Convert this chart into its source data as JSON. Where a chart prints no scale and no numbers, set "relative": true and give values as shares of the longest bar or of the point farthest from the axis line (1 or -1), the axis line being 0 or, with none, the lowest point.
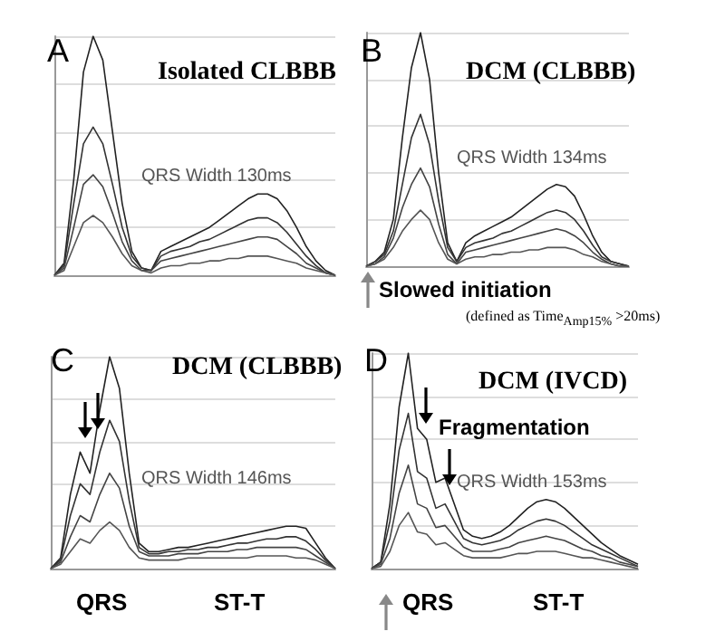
{
  "chart_data": [
    {
      "type": "line",
      "title": "Isolated CLBBB",
      "annotations": [
        "A",
        "QRS Width 130ms"
      ],
      "relative": true,
      "grid": "y",
      "line_style": "solid",
      "categories": [
        null,
        null,
        null,
        null,
        null,
        null,
        null,
        null,
        null,
        null,
        null,
        null,
        null,
        null,
        null,
        null,
        null,
        null,
        null,
        null,
        null,
        null,
        null,
        null,
        null,
        null,
        null,
        null,
        null,
        null
      ],
      "series": [
        {
          "color": "#222222",
          "values": [
            0,
            0.05,
            0.4,
            0.85,
            1,
            0.9,
            0.6,
            0.3,
            0.1,
            0.03,
            0.02,
            0.1,
            0.12,
            0.14,
            0.16,
            0.18,
            0.2,
            0.23,
            0.26,
            0.29,
            0.32,
            0.34,
            0.34,
            0.32,
            0.27,
            0.2,
            0.12,
            0.06,
            0.02,
            0
          ]
        },
        {
          "color": "#333333",
          "values": [
            0,
            0.04,
            0.3,
            0.55,
            0.62,
            0.55,
            0.38,
            0.2,
            0.08,
            0.03,
            0.02,
            0.08,
            0.1,
            0.11,
            0.12,
            0.14,
            0.15,
            0.17,
            0.19,
            0.21,
            0.23,
            0.24,
            0.24,
            0.22,
            0.18,
            0.13,
            0.08,
            0.04,
            0.01,
            0
          ]
        },
        {
          "color": "#444444",
          "values": [
            0,
            0.03,
            0.2,
            0.38,
            0.42,
            0.37,
            0.26,
            0.14,
            0.06,
            0.02,
            0.02,
            0.06,
            0.07,
            0.08,
            0.09,
            0.1,
            0.11,
            0.12,
            0.13,
            0.14,
            0.15,
            0.16,
            0.16,
            0.15,
            0.12,
            0.09,
            0.05,
            0.03,
            0.01,
            0
          ]
        },
        {
          "color": "#555555",
          "values": [
            0,
            0.02,
            0.12,
            0.22,
            0.25,
            0.22,
            0.16,
            0.09,
            0.04,
            0.02,
            0.01,
            0.03,
            0.04,
            0.04,
            0.05,
            0.05,
            0.06,
            0.06,
            0.07,
            0.07,
            0.08,
            0.08,
            0.08,
            0.07,
            0.06,
            0.05,
            0.03,
            0.02,
            0.01,
            0
          ]
        }
      ]
    },
    {
      "type": "line",
      "title": "DCM (CLBBB)",
      "annotations": [
        "B",
        "QRS Width 134ms",
        "Slowed initiation",
        "(defined as Time$_{Amp15%}$ >20ms)"
      ],
      "relative": true,
      "grid": "y",
      "line_style": "solid",
      "categories": [
        null,
        null,
        null,
        null,
        null,
        null,
        null,
        null,
        null,
        null,
        null,
        null,
        null,
        null,
        null,
        null,
        null,
        null,
        null,
        null,
        null,
        null,
        null,
        null,
        null,
        null,
        null,
        null,
        null,
        null
      ],
      "series": [
        {
          "color": "#222222",
          "values": [
            0,
            0.02,
            0.06,
            0.2,
            0.55,
            0.85,
            1,
            0.8,
            0.4,
            0.1,
            0.02,
            0.1,
            0.13,
            0.15,
            0.17,
            0.19,
            0.21,
            0.24,
            0.27,
            0.3,
            0.33,
            0.35,
            0.34,
            0.3,
            0.22,
            0.13,
            0.06,
            0.02,
            0.01,
            0
          ]
        },
        {
          "color": "#333333",
          "values": [
            0,
            0.02,
            0.05,
            0.15,
            0.35,
            0.55,
            0.65,
            0.52,
            0.28,
            0.08,
            0.02,
            0.08,
            0.1,
            0.11,
            0.12,
            0.14,
            0.15,
            0.17,
            0.19,
            0.21,
            0.23,
            0.24,
            0.23,
            0.2,
            0.15,
            0.09,
            0.04,
            0.02,
            0.01,
            0
          ]
        },
        {
          "color": "#444444",
          "values": [
            0,
            0.01,
            0.04,
            0.12,
            0.25,
            0.35,
            0.42,
            0.34,
            0.18,
            0.05,
            0.01,
            0.06,
            0.07,
            0.08,
            0.09,
            0.1,
            0.11,
            0.12,
            0.13,
            0.14,
            0.15,
            0.16,
            0.15,
            0.13,
            0.1,
            0.06,
            0.03,
            0.01,
            0,
            0
          ]
        },
        {
          "color": "#555555",
          "values": [
            0,
            0.01,
            0.03,
            0.08,
            0.15,
            0.2,
            0.24,
            0.2,
            0.1,
            0.03,
            0.01,
            0.03,
            0.04,
            0.04,
            0.05,
            0.05,
            0.06,
            0.06,
            0.07,
            0.07,
            0.08,
            0.08,
            0.08,
            0.07,
            0.05,
            0.04,
            0.02,
            0.01,
            0,
            0
          ]
        }
      ]
    },
    {
      "type": "line",
      "title": "DCM (CLBBB)",
      "annotations": [
        "C",
        "QRS Width 146ms",
        "QRS",
        "ST-T"
      ],
      "relative": true,
      "grid": "y",
      "line_style": "solid",
      "categories": [
        null,
        null,
        null,
        null,
        null,
        null,
        null,
        null,
        null,
        null,
        null,
        null,
        null,
        null,
        null,
        null,
        null,
        null,
        null,
        null,
        null,
        null,
        null,
        null,
        null,
        null,
        null,
        null,
        null,
        null
      ],
      "series": [
        {
          "color": "#222222",
          "values": [
            0,
            0.05,
            0.35,
            0.55,
            0.45,
            0.75,
            1,
            0.85,
            0.45,
            0.12,
            0.08,
            0.08,
            0.09,
            0.1,
            0.1,
            0.11,
            0.12,
            0.13,
            0.14,
            0.15,
            0.16,
            0.17,
            0.18,
            0.19,
            0.2,
            0.2,
            0.19,
            0.12,
            0.05,
            0
          ]
        },
        {
          "color": "#333333",
          "values": [
            0,
            0.04,
            0.25,
            0.4,
            0.35,
            0.55,
            0.7,
            0.6,
            0.32,
            0.1,
            0.07,
            0.07,
            0.08,
            0.08,
            0.09,
            0.09,
            0.1,
            0.1,
            0.11,
            0.12,
            0.12,
            0.13,
            0.14,
            0.14,
            0.15,
            0.15,
            0.13,
            0.09,
            0.04,
            0
          ]
        },
        {
          "color": "#444444",
          "values": [
            0,
            0.03,
            0.15,
            0.25,
            0.22,
            0.35,
            0.45,
            0.38,
            0.2,
            0.08,
            0.06,
            0.06,
            0.06,
            0.07,
            0.07,
            0.07,
            0.08,
            0.08,
            0.08,
            0.09,
            0.09,
            0.1,
            0.1,
            0.1,
            0.1,
            0.1,
            0.09,
            0.06,
            0.03,
            0
          ]
        },
        {
          "color": "#555555",
          "values": [
            0,
            0.02,
            0.08,
            0.14,
            0.12,
            0.18,
            0.22,
            0.18,
            0.1,
            0.05,
            0.04,
            0.04,
            0.04,
            0.04,
            0.05,
            0.05,
            0.05,
            0.05,
            0.05,
            0.05,
            0.05,
            0.06,
            0.06,
            0.06,
            0.06,
            0.05,
            0.05,
            0.04,
            0.02,
            0
          ]
        }
      ]
    },
    {
      "type": "line",
      "title": "DCM (IVCD)",
      "annotations": [
        "D",
        "Fragmentation",
        "QRS Width 153ms",
        "QRS",
        "ST-T"
      ],
      "relative": true,
      "grid": "y",
      "line_style": "solid",
      "categories": [
        null,
        null,
        null,
        null,
        null,
        null,
        null,
        null,
        null,
        null,
        null,
        null,
        null,
        null,
        null,
        null,
        null,
        null,
        null,
        null,
        null,
        null,
        null,
        null,
        null,
        null,
        null,
        null,
        null,
        null
      ],
      "series": [
        {
          "color": "#222222",
          "values": [
            0,
            0.03,
            0.3,
            0.75,
            1,
            0.65,
            0.6,
            0.4,
            0.42,
            0.3,
            0.18,
            0.15,
            0.14,
            0.15,
            0.17,
            0.2,
            0.24,
            0.28,
            0.31,
            0.32,
            0.31,
            0.28,
            0.24,
            0.2,
            0.16,
            0.12,
            0.09,
            0.06,
            0.04,
            0.02
          ]
        },
        {
          "color": "#333333",
          "values": [
            0,
            0.03,
            0.22,
            0.55,
            0.72,
            0.45,
            0.42,
            0.28,
            0.3,
            0.22,
            0.14,
            0.12,
            0.11,
            0.12,
            0.13,
            0.15,
            0.18,
            0.2,
            0.22,
            0.23,
            0.22,
            0.2,
            0.17,
            0.14,
            0.11,
            0.09,
            0.07,
            0.05,
            0.03,
            0.01
          ]
        },
        {
          "color": "#444444",
          "values": [
            0,
            0.02,
            0.14,
            0.35,
            0.48,
            0.3,
            0.28,
            0.19,
            0.2,
            0.15,
            0.1,
            0.08,
            0.08,
            0.08,
            0.09,
            0.1,
            0.12,
            0.13,
            0.14,
            0.15,
            0.14,
            0.13,
            0.11,
            0.09,
            0.08,
            0.06,
            0.05,
            0.03,
            0.02,
            0.01
          ]
        },
        {
          "color": "#555555",
          "values": [
            0,
            0.01,
            0.08,
            0.2,
            0.26,
            0.17,
            0.16,
            0.11,
            0.12,
            0.09,
            0.06,
            0.05,
            0.05,
            0.05,
            0.05,
            0.06,
            0.07,
            0.07,
            0.08,
            0.08,
            0.08,
            0.07,
            0.06,
            0.05,
            0.05,
            0.04,
            0.03,
            0.02,
            0.01,
            0
          ]
        }
      ]
    }
  ]
}
